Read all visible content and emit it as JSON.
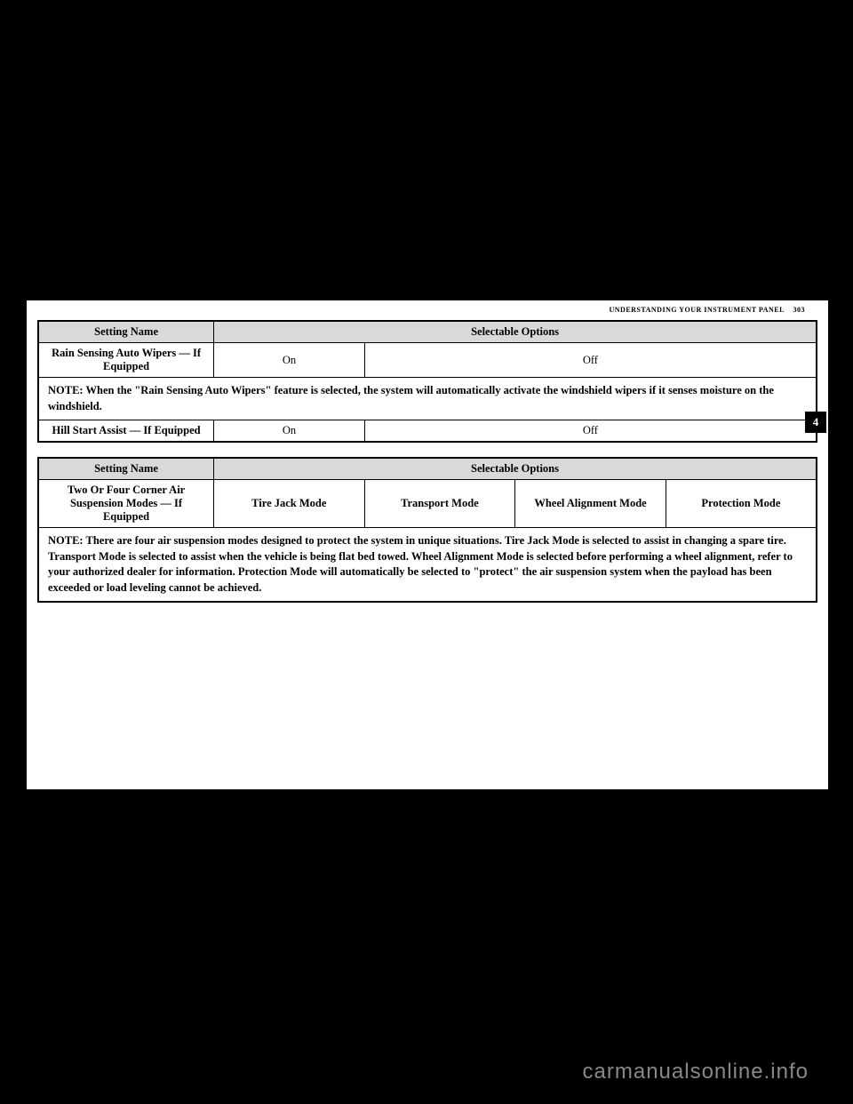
{
  "header": {
    "section_title": "UNDERSTANDING YOUR INSTRUMENT PANEL",
    "page_number": "303",
    "tab_number": "4"
  },
  "table1": {
    "col_setting": "Setting Name",
    "col_options": "Selectable Options",
    "row1_name": "Rain Sensing Auto Wipers — If Equipped",
    "row1_on": "On",
    "row1_off": "Off",
    "note": "NOTE: When the \"Rain Sensing Auto Wipers\" feature is selected, the system will automatically activate the windshield wipers if it senses moisture on the windshield.",
    "note_prefix": "NOTE:",
    "note_body": " When the \"Rain Sensing Auto Wipers\" feature is selected, the system will automatically activate the windshield wipers if it senses moisture on the windshield.",
    "row2_name": "Hill Start Assist — If Equipped",
    "row2_on": "On",
    "row2_off": "Off"
  },
  "table2": {
    "col_setting": "Setting Name",
    "col_options": "Selectable Options",
    "row1_name": "Two Or Four Corner Air Suspension Modes — If Equipped",
    "mode1": "Tire Jack Mode",
    "mode2": "Transport Mode",
    "mode3": "Wheel Alignment Mode",
    "mode4": "Protection Mode",
    "note_prefix": "NOTE:",
    "note_body": " There are four air suspension modes designed to protect the system in unique situations. Tire Jack Mode is selected to assist in changing a spare tire. Transport Mode is selected to assist when the vehicle is being flat bed towed. Wheel Alignment Mode is selected before performing a wheel alignment, refer to your authorized dealer for information. Protection Mode will automatically be selected to \"protect\" the air suspension system when the payload has been exceeded or load leveling cannot be achieved."
  },
  "watermark": "carmanualsonline.info"
}
